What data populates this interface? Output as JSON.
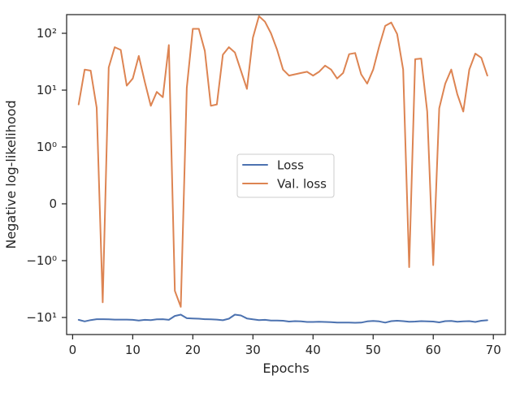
{
  "chart_data": {
    "type": "line",
    "xlabel": "Epochs",
    "ylabel": "Negative log-likelihood",
    "yscale": "symlog",
    "xlim": [
      -1,
      72
    ],
    "x_ticks": [
      0,
      10,
      20,
      30,
      40,
      50,
      60,
      70
    ],
    "y_ticks": [
      {
        "value": -10,
        "label": "−10¹"
      },
      {
        "value": -1,
        "label": "−10⁰"
      },
      {
        "value": 0,
        "label": "0"
      },
      {
        "value": 1,
        "label": "10⁰"
      },
      {
        "value": 10,
        "label": "10¹"
      },
      {
        "value": 100,
        "label": "10²"
      }
    ],
    "grid": false,
    "legend_position": "center",
    "series": [
      {
        "name": "Loss",
        "color": "#4c72b0",
        "x": [
          1,
          2,
          3,
          4,
          5,
          6,
          7,
          8,
          9,
          10,
          11,
          12,
          13,
          14,
          15,
          16,
          17,
          18,
          19,
          20,
          21,
          22,
          23,
          24,
          25,
          26,
          27,
          28,
          29,
          30,
          31,
          32,
          33,
          34,
          35,
          36,
          37,
          38,
          39,
          40,
          41,
          42,
          43,
          44,
          45,
          46,
          47,
          48,
          49,
          50,
          51,
          52,
          53,
          54,
          55,
          56,
          57,
          58,
          59,
          60,
          61,
          62,
          63,
          64,
          65,
          66,
          67,
          68,
          69
        ],
        "values": [
          -11.0,
          -11.7,
          -11.1,
          -10.7,
          -10.7,
          -10.8,
          -10.9,
          -10.9,
          -10.9,
          -11.0,
          -11.3,
          -11.0,
          -11.1,
          -10.8,
          -10.7,
          -11.0,
          -9.4,
          -8.9,
          -10.3,
          -10.4,
          -10.5,
          -10.7,
          -10.8,
          -10.9,
          -11.2,
          -10.5,
          -8.9,
          -9.2,
          -10.4,
          -10.8,
          -11.1,
          -11.0,
          -11.3,
          -11.3,
          -11.4,
          -11.8,
          -11.6,
          -11.7,
          -12.0,
          -12.0,
          -11.9,
          -12.0,
          -12.1,
          -12.3,
          -12.3,
          -12.3,
          -12.4,
          -12.3,
          -11.7,
          -11.5,
          -11.7,
          -12.3,
          -11.6,
          -11.4,
          -11.6,
          -11.9,
          -11.8,
          -11.6,
          -11.7,
          -11.8,
          -12.2,
          -11.6,
          -11.5,
          -11.9,
          -11.7,
          -11.6,
          -12.0,
          -11.4,
          -11.2
        ]
      },
      {
        "name": "Val. loss",
        "color": "#dd8452",
        "x": [
          1,
          2,
          3,
          4,
          5,
          6,
          7,
          8,
          9,
          10,
          11,
          12,
          13,
          14,
          15,
          16,
          17,
          18,
          19,
          20,
          21,
          22,
          23,
          24,
          25,
          26,
          27,
          28,
          29,
          30,
          31,
          32,
          33,
          34,
          35,
          36,
          37,
          38,
          39,
          40,
          41,
          42,
          43,
          44,
          45,
          46,
          47,
          48,
          49,
          50,
          51,
          52,
          53,
          54,
          55,
          56,
          57,
          58,
          59,
          60,
          61,
          62,
          63,
          64,
          65,
          66,
          67,
          68,
          69
        ],
        "values": [
          5.6,
          23,
          22,
          4.9,
          -5.4,
          25,
          57,
          51,
          12,
          16,
          40,
          14,
          5.3,
          9.3,
          7.5,
          62,
          -3.4,
          -6.5,
          11,
          120,
          120,
          49,
          5.3,
          5.6,
          42,
          57,
          46,
          22,
          10.5,
          84,
          200,
          160,
          100,
          52,
          23,
          18,
          19,
          20,
          21,
          18,
          21,
          27,
          23,
          16,
          20,
          43,
          45,
          19,
          13,
          23,
          59,
          135,
          155,
          97,
          23,
          -1.3,
          35,
          36,
          4.2,
          -1.2,
          4.8,
          13,
          23,
          8.5,
          4.2,
          23,
          44,
          37,
          18
        ]
      }
    ]
  }
}
